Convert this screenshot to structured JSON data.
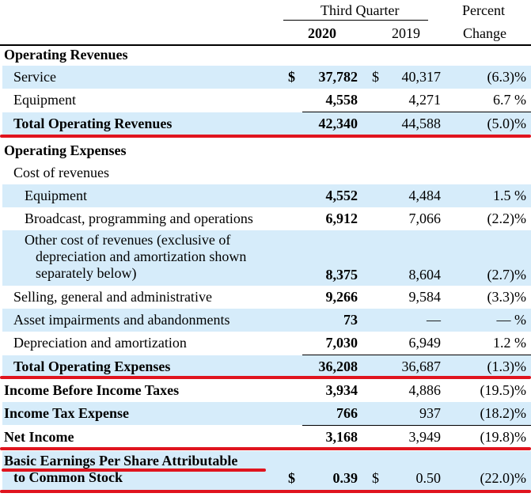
{
  "header": {
    "period": "Third Quarter",
    "year_current": "2020",
    "year_prior": "2019",
    "percent_line1": "Percent",
    "percent_line2": "Change"
  },
  "rows": [
    {
      "label": "Operating Revenues"
    },
    {
      "label": "Service",
      "d1": "$",
      "v2020": "37,782",
      "d2": "$",
      "v2019": "40,317",
      "pct": "(6.3)%"
    },
    {
      "label": "Equipment",
      "v2020": "4,558",
      "v2019": "4,271",
      "pct": "6.7 %"
    },
    {
      "label": "Total Operating Revenues",
      "v2020": "42,340",
      "v2019": "44,588",
      "pct": "(5.0)%"
    },
    {
      "label": "Operating Expenses"
    },
    {
      "label": "Cost of revenues"
    },
    {
      "label": "Equipment",
      "v2020": "4,552",
      "v2019": "4,484",
      "pct": "1.5 %"
    },
    {
      "label": "Broadcast, programming and operations",
      "v2020": "6,912",
      "v2019": "7,066",
      "pct": "(2.2)%"
    },
    {
      "label_lines": [
        "Other cost of revenues (exclusive of",
        "depreciation and amortization shown",
        "separately below)"
      ],
      "v2020": "8,375",
      "v2019": "8,604",
      "pct": "(2.7)%"
    },
    {
      "label": "Selling, general and administrative",
      "v2020": "9,266",
      "v2019": "9,584",
      "pct": "(3.3)%"
    },
    {
      "label": "Asset impairments and abandonments",
      "v2020": "73",
      "v2019": "—",
      "pct": "— %"
    },
    {
      "label": "Depreciation and amortization",
      "v2020": "7,030",
      "v2019": "6,949",
      "pct": "1.2 %"
    },
    {
      "label": "Total Operating Expenses",
      "v2020": "36,208",
      "v2019": "36,687",
      "pct": "(1.3)%"
    },
    {
      "label": "Income Before Income Taxes",
      "v2020": "3,934",
      "v2019": "4,886",
      "pct": "(19.5)%"
    },
    {
      "label": "Income Tax Expense",
      "v2020": "766",
      "v2019": "937",
      "pct": "(18.2)%"
    },
    {
      "label": "Net Income",
      "v2020": "3,168",
      "v2019": "3,949",
      "pct": "(19.8)%"
    },
    {
      "label_lines": [
        "Basic Earnings Per Share Attributable",
        "to Common Stock"
      ],
      "d1": "$",
      "v2020": "0.39",
      "d2": "$",
      "v2019": "0.50",
      "pct": "(22.0)%"
    }
  ],
  "colors": {
    "row_shade": "#d6ecfa",
    "underline": "#e0141e"
  }
}
